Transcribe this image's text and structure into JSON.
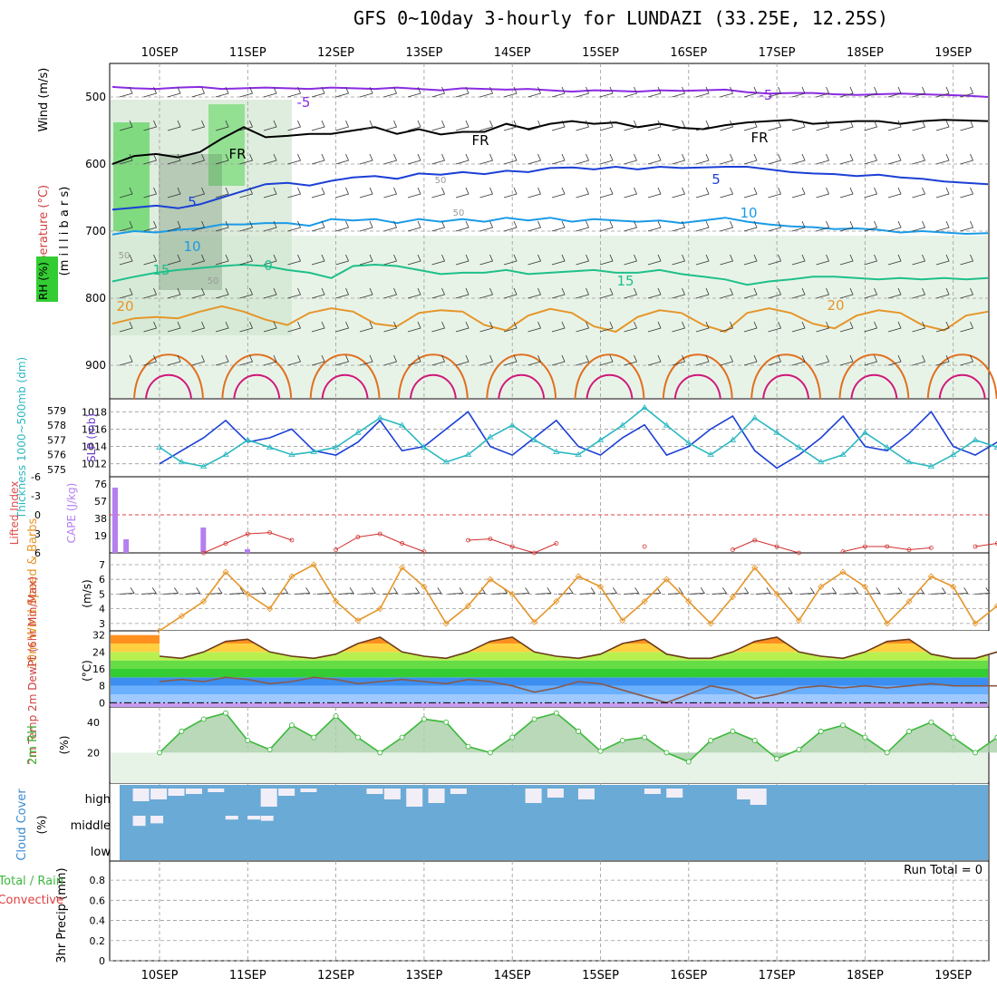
{
  "title": "GFS 0~10day 3-hourly for LUNDAZI (33.25E, 12.25S)",
  "x_axis": {
    "date_labels": [
      "10SEP",
      "11SEP",
      "12SEP",
      "13SEP",
      "14SEP",
      "15SEP",
      "16SEP",
      "17SEP",
      "18SEP",
      "19SEP"
    ]
  },
  "colors": {
    "purple": "#8a2be2",
    "black": "#000000",
    "blue": "#1b3fd6",
    "lightblue": "#1a9be6",
    "teal": "#1ec08a",
    "orange": "#e5962a",
    "darkorange": "#e07020",
    "magenta": "#d01a7a",
    "cyan": "#2ab8c0",
    "gridgray": "#9a9a9a",
    "rhgreen": "#3cb83c",
    "cloudblue": "#6aaad6"
  },
  "chart_data": [
    {
      "panel": "upper_air",
      "type": "line",
      "ylabel_parts": [
        "RH (%)",
        "Temperature (°C)",
        "Wind (m/s)"
      ],
      "ylabel2": "(m i l l i b a r s)",
      "y_ticks": [
        "500",
        "600",
        "700",
        "800",
        "900"
      ],
      "ylim": [
        950,
        450
      ],
      "reversed": true,
      "contour_labels": [
        "-5",
        "-5",
        "FR",
        "FR",
        "FR",
        "5",
        "5",
        "10",
        "10",
        "15",
        "15",
        "0",
        "20",
        "20",
        "50",
        "50",
        "50",
        "50"
      ],
      "isotherms": [
        {
          "name": "-5",
          "color": "purple",
          "y": [
            485,
            487,
            488,
            486,
            485,
            488,
            487,
            486,
            487,
            488,
            486,
            487,
            488,
            486,
            488,
            490,
            487,
            488,
            489,
            488,
            490,
            492,
            490,
            491,
            492,
            490,
            491,
            490,
            489,
            493,
            495,
            494,
            494,
            496,
            497,
            496,
            495,
            496,
            497,
            498,
            500
          ]
        },
        {
          "name": "FR",
          "color": "black",
          "y": [
            600,
            588,
            585,
            590,
            582,
            562,
            545,
            560,
            558,
            555,
            555,
            550,
            545,
            555,
            548,
            556,
            552,
            552,
            540,
            548,
            540,
            536,
            540,
            538,
            545,
            540,
            546,
            548,
            542,
            538,
            536,
            534,
            540,
            538,
            536,
            536,
            540,
            536,
            534,
            535,
            536
          ]
        },
        {
          "name": "5",
          "color": "blue",
          "y": [
            668,
            665,
            662,
            666,
            660,
            650,
            640,
            630,
            628,
            632,
            625,
            620,
            618,
            622,
            614,
            616,
            612,
            615,
            610,
            612,
            606,
            605,
            608,
            604,
            608,
            604,
            606,
            605,
            604,
            604,
            608,
            612,
            614,
            615,
            618,
            616,
            620,
            622,
            626,
            628,
            630
          ]
        },
        {
          "name": "10",
          "color": "lightblue",
          "y": [
            705,
            700,
            702,
            698,
            696,
            690,
            690,
            688,
            688,
            692,
            682,
            684,
            682,
            688,
            682,
            686,
            682,
            686,
            680,
            684,
            680,
            686,
            682,
            684,
            686,
            684,
            688,
            684,
            680,
            686,
            690,
            693,
            694,
            697,
            696,
            698,
            702,
            700,
            702,
            704,
            703
          ]
        },
        {
          "name": "15",
          "color": "teal",
          "y": [
            775,
            768,
            762,
            758,
            755,
            752,
            750,
            752,
            758,
            762,
            770,
            752,
            750,
            752,
            758,
            764,
            762,
            762,
            758,
            764,
            762,
            760,
            758,
            762,
            762,
            758,
            764,
            768,
            772,
            780,
            775,
            772,
            768,
            768,
            770,
            772,
            770,
            772,
            770,
            772,
            770
          ]
        },
        {
          "name": "20",
          "color": "orange",
          "y": [
            838,
            830,
            828,
            830,
            820,
            812,
            820,
            832,
            840,
            822,
            815,
            820,
            838,
            842,
            822,
            818,
            820,
            840,
            848,
            826,
            816,
            822,
            842,
            850,
            828,
            818,
            822,
            840,
            850,
            822,
            815,
            822,
            838,
            845,
            826,
            818,
            822,
            840,
            848,
            826,
            820
          ]
        }
      ]
    },
    {
      "panel": "thickness_slp",
      "type": "line",
      "left_label": "Thickness 1000~500mb (dm)",
      "right_label": "SLP (mb)",
      "left_ticks": [
        "579",
        "578",
        "577",
        "576",
        "575"
      ],
      "right_ticks": [
        "1018",
        "1016",
        "1014",
        "1012"
      ],
      "series": [
        {
          "name": "SLP (mb)",
          "color": "blue",
          "x": [
            0.0,
            0.25,
            0.5,
            0.75,
            1.0,
            1.25,
            1.5,
            1.75,
            2.0,
            2.25,
            2.5,
            2.75,
            3.0,
            3.25,
            3.5,
            3.75,
            4.0,
            4.25,
            4.5,
            4.75,
            5.0,
            5.25,
            5.5,
            5.75,
            6.0,
            6.25,
            6.5,
            6.75,
            7.0,
            7.25,
            7.5,
            7.75,
            8.0,
            8.25,
            8.5,
            8.75,
            9.0,
            9.25,
            9.5,
            9.75
          ],
          "values": [
            1012.0,
            1013.5,
            1015.0,
            1017.0,
            1014.5,
            1015.0,
            1016.0,
            1013.5,
            1013.0,
            1014.5,
            1017.0,
            1013.5,
            1014.0,
            1016.0,
            1018.0,
            1014.0,
            1013.0,
            1015.0,
            1017.0,
            1014.0,
            1013.0,
            1015.0,
            1016.5,
            1013.0,
            1014.0,
            1016.0,
            1017.5,
            1013.5,
            1011.5,
            1013.0,
            1015.0,
            1017.5,
            1014.0,
            1013.5,
            1015.5,
            1018.0,
            1014.0,
            1013.0,
            1014.5,
            1015.5
          ]
        },
        {
          "name": "Thickness 1000~500mb (dm)",
          "color": "cyan",
          "x": [
            0.0,
            0.25,
            0.5,
            0.75,
            1.0,
            1.25,
            1.5,
            1.75,
            2.0,
            2.25,
            2.5,
            2.75,
            3.0,
            3.25,
            3.5,
            3.75,
            4.0,
            4.25,
            4.5,
            4.75,
            5.0,
            5.25,
            5.5,
            5.75,
            6.0,
            6.25,
            6.5,
            6.75,
            7.0,
            7.25,
            7.5,
            7.75,
            8.0,
            8.25,
            8.5,
            8.75,
            9.0,
            9.25,
            9.5,
            9.75
          ],
          "values": [
            576.5,
            575.5,
            575.2,
            576.0,
            577.0,
            576.5,
            576.0,
            576.2,
            576.5,
            577.5,
            578.5,
            578.0,
            576.5,
            575.5,
            576.0,
            577.2,
            578.0,
            577.0,
            576.2,
            576.0,
            577.0,
            578.0,
            579.2,
            578.0,
            576.8,
            576.0,
            577.0,
            578.5,
            577.5,
            576.5,
            575.5,
            576.0,
            577.5,
            576.5,
            575.5,
            575.2,
            576.0,
            577.0,
            576.5,
            576.0
          ]
        }
      ]
    },
    {
      "panel": "cape_li",
      "type": "bar",
      "left_label": "CAPE (J/kg)",
      "right_label": "Lifted Index",
      "left_ticks": [
        "76",
        "57",
        "38",
        "19"
      ],
      "right_ticks": [
        "-6",
        "-3",
        "0",
        "3",
        "6"
      ],
      "cape": {
        "x": [
          0.0,
          0.125,
          1.0,
          1.5
        ],
        "values": [
          72,
          15,
          28,
          4
        ]
      },
      "lifted_index": {
        "x": [
          0.5,
          0.75,
          1.0,
          1.25,
          1.5,
          2.0,
          2.25,
          2.5,
          2.75,
          3.0,
          3.5,
          3.75,
          4.0,
          4.25,
          4.5,
          5.5,
          6.5,
          6.75,
          7.0,
          7.25,
          7.75,
          8.0,
          8.25,
          8.5,
          8.75,
          9.25,
          9.5,
          9.75
        ],
        "values": [
          6.0,
          4.5,
          3.0,
          2.8,
          4.0,
          5.5,
          3.5,
          3.0,
          4.5,
          5.8,
          4.0,
          3.8,
          5.0,
          6.0,
          4.5,
          5.0,
          5.5,
          4.0,
          5.0,
          6.0,
          5.8,
          5.0,
          5.0,
          5.5,
          5.2,
          5.0,
          4.5,
          5.5
        ]
      },
      "zero_line": 0
    },
    {
      "panel": "wind10m",
      "type": "line",
      "left_label": "10m Wind Speed & Barbs",
      "unit": "(m/s)",
      "ticks": [
        "7",
        "6",
        "5",
        "4",
        "3"
      ],
      "ylim": [
        2.5,
        7.8
      ],
      "series": [
        {
          "name": "10m wind speed",
          "color": "orange",
          "x": [
            0.0,
            0.25,
            0.5,
            0.75,
            1.0,
            1.25,
            1.5,
            1.75,
            2.0,
            2.25,
            2.5,
            2.75,
            3.0,
            3.25,
            3.5,
            3.75,
            4.0,
            4.25,
            4.5,
            4.75,
            5.0,
            5.25,
            5.5,
            5.75,
            6.0,
            6.25,
            6.5,
            6.75,
            7.0,
            7.25,
            7.5,
            7.75,
            8.0,
            8.25,
            8.5,
            8.75,
            9.0,
            9.25,
            9.5,
            9.75
          ],
          "values": [
            2.5,
            3.5,
            4.5,
            6.5,
            5.0,
            4.0,
            6.2,
            7.0,
            4.5,
            3.2,
            4.0,
            6.8,
            5.5,
            3.0,
            4.2,
            6.0,
            5.0,
            3.1,
            4.5,
            6.2,
            5.5,
            3.2,
            4.5,
            6.0,
            4.5,
            3.0,
            4.8,
            6.8,
            5.0,
            3.2,
            5.5,
            6.5,
            5.5,
            3.0,
            4.5,
            6.2,
            5.5,
            3.0,
            4.2,
            6.0
          ]
        }
      ]
    },
    {
      "panel": "temp_dewpt",
      "type": "area",
      "left_label": "2m Temp 2m DewPt (6hr Min/Max)",
      "unit": "(°C)",
      "ticks": [
        "32",
        "24",
        "16",
        "8",
        "0"
      ],
      "ylim": [
        -2,
        34
      ],
      "series": [
        {
          "name": "2m Temp",
          "color": "orange",
          "x": [
            0.0,
            0.25,
            0.5,
            0.75,
            1.0,
            1.25,
            1.5,
            1.75,
            2.0,
            2.25,
            2.5,
            2.75,
            3.0,
            3.25,
            3.5,
            3.75,
            4.0,
            4.25,
            4.5,
            4.75,
            5.0,
            5.25,
            5.5,
            5.75,
            6.0,
            6.25,
            6.5,
            6.75,
            7.0,
            7.25,
            7.5,
            7.75,
            8.0,
            8.25,
            8.5,
            8.75,
            9.0,
            9.25,
            9.5,
            9.75
          ],
          "values": [
            22,
            21,
            24,
            29,
            30,
            24,
            22,
            21,
            23,
            28,
            31,
            24,
            22,
            21,
            24,
            29,
            31,
            24,
            22,
            21,
            23,
            28,
            30,
            23,
            21,
            21,
            24,
            29,
            31,
            24,
            22,
            21,
            24,
            29,
            30,
            23,
            21,
            21,
            24,
            27
          ]
        },
        {
          "name": "2m DewPt",
          "color": "gray",
          "x": [
            0.0,
            0.25,
            0.5,
            0.75,
            1.0,
            1.25,
            1.5,
            1.75,
            2.0,
            2.25,
            2.5,
            2.75,
            3.0,
            3.25,
            3.5,
            3.75,
            4.0,
            4.25,
            4.5,
            4.75,
            5.0,
            5.25,
            5.5,
            5.75,
            6.0,
            6.25,
            6.5,
            6.75,
            7.0,
            7.25,
            7.5,
            7.75,
            8.0,
            8.25,
            8.5,
            8.75,
            9.0,
            9.25,
            9.5,
            9.75
          ],
          "values": [
            10,
            11,
            10,
            12,
            11,
            9,
            10,
            12,
            11,
            9,
            10,
            11,
            10,
            9,
            11,
            10,
            8,
            5,
            7,
            10,
            9,
            6,
            3,
            0,
            4,
            8,
            6,
            2,
            4,
            7,
            8,
            7,
            8,
            7,
            8,
            9,
            8,
            8,
            8,
            9
          ]
        }
      ]
    },
    {
      "panel": "rh2m",
      "type": "area",
      "left_label": "2m RH",
      "unit": "(%)",
      "ticks": [
        "40",
        "20"
      ],
      "ylim": [
        0,
        50
      ],
      "series": [
        {
          "name": "2m RH",
          "color": "rhgreen",
          "x": [
            0.0,
            0.25,
            0.5,
            0.75,
            1.0,
            1.25,
            1.5,
            1.75,
            2.0,
            2.25,
            2.5,
            2.75,
            3.0,
            3.25,
            3.5,
            3.75,
            4.0,
            4.25,
            4.5,
            4.75,
            5.0,
            5.25,
            5.5,
            5.75,
            6.0,
            6.25,
            6.5,
            6.75,
            7.0,
            7.25,
            7.5,
            7.75,
            8.0,
            8.25,
            8.5,
            8.75,
            9.0,
            9.25,
            9.5,
            9.75
          ],
          "values": [
            20,
            34,
            42,
            46,
            28,
            22,
            38,
            30,
            44,
            30,
            20,
            30,
            42,
            40,
            24,
            20,
            30,
            42,
            46,
            34,
            21,
            28,
            30,
            20,
            14,
            28,
            34,
            28,
            16,
            22,
            34,
            38,
            30,
            20,
            34,
            40,
            30,
            20,
            30,
            46
          ]
        }
      ]
    },
    {
      "panel": "cloud_cover",
      "type": "bar",
      "left_label": "Cloud Cover",
      "unit": "(%)",
      "levels": [
        "high",
        "middle",
        "low"
      ],
      "high": {
        "x": [
          0.15,
          0.35,
          0.55,
          0.75,
          1.0,
          1.6,
          1.8,
          2.05,
          2.8,
          3.0,
          3.25,
          3.5,
          3.75,
          4.6,
          4.85,
          5.2,
          5.95,
          6.2,
          7.0,
          7.15
        ],
        "values": [
          70,
          60,
          40,
          30,
          20,
          100,
          40,
          20,
          30,
          60,
          100,
          80,
          30,
          80,
          50,
          60,
          30,
          50,
          60,
          90
        ]
      },
      "middle": {
        "x": [
          0.15,
          0.35,
          1.2,
          1.45,
          1.6
        ],
        "values": [
          80,
          60,
          30,
          30,
          40
        ]
      }
    },
    {
      "panel": "precip",
      "type": "bar",
      "left_label": "3hr Precip (mm)",
      "legend": [
        "Total / Rain",
        "Convective"
      ],
      "ticks": [
        "0.8",
        "0.6",
        "0.4",
        "0.2",
        "0"
      ],
      "ylim": [
        0,
        0.9
      ],
      "annotation": "Run Total = 0",
      "values": []
    }
  ]
}
